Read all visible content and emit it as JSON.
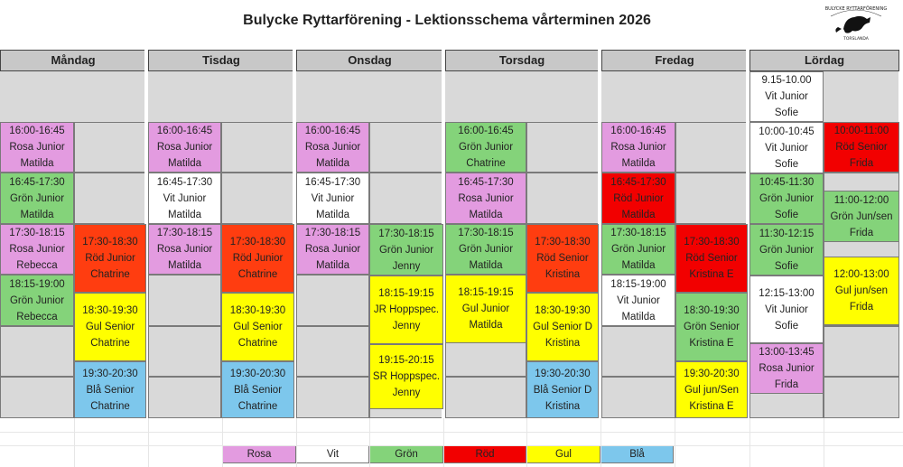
{
  "title": "Bulycke Ryttarförening - Lektionsschema vårterminen 2026",
  "logo_text": [
    "BULYCKE RYTTARFÖRENING",
    "TORSLANDA"
  ],
  "days": [
    "Måndag",
    "Tisdag",
    "Onsdag",
    "Torsdag",
    "Fredag",
    "Lördag"
  ],
  "colors": {
    "rosa": "#e39be0",
    "vit": "#ffffff",
    "gron": "#84d37a",
    "rod": "#f20000",
    "rod_orange": "#ff3d10",
    "gul": "#ffff00",
    "bla": "#7dc7ec",
    "empty": "#d9d9d9"
  },
  "lessons": [
    {
      "day": "Måndag",
      "time": "16:00-16:45",
      "group": "Rosa Junior",
      "teacher": "Matilda",
      "color": "rosa"
    },
    {
      "day": "Måndag",
      "time": "16:45-17:30",
      "group": "Grön Junior",
      "teacher": "Matilda",
      "color": "gron"
    },
    {
      "day": "Måndag",
      "time": "17:30-18:15",
      "group": "Rosa Junior",
      "teacher": "Rebecca",
      "color": "rosa"
    },
    {
      "day": "Måndag",
      "time": "18:15-19:00",
      "group": "Grön Junior",
      "teacher": "Rebecca",
      "color": "gron"
    },
    {
      "day": "Måndag",
      "time": "17:30-18:30",
      "group": "Röd Junior",
      "teacher": "Chatrine",
      "color": "rod_orange"
    },
    {
      "day": "Måndag",
      "time": "18:30-19:30",
      "group": "Gul Senior",
      "teacher": "Chatrine",
      "color": "gul"
    },
    {
      "day": "Måndag",
      "time": "19:30-20:30",
      "group": "Blå Senior",
      "teacher": "Chatrine",
      "color": "bla"
    },
    {
      "day": "Tisdag",
      "time": "16:00-16:45",
      "group": "Rosa Junior",
      "teacher": "Matilda",
      "color": "rosa"
    },
    {
      "day": "Tisdag",
      "time": "16:45-17:30",
      "group": "Vit Junior",
      "teacher": "Matilda",
      "color": "vit"
    },
    {
      "day": "Tisdag",
      "time": "17:30-18:15",
      "group": "Rosa Junior",
      "teacher": "Matilda",
      "color": "rosa"
    },
    {
      "day": "Tisdag",
      "time": "17:30-18:30",
      "group": "Röd Junior",
      "teacher": "Chatrine",
      "color": "rod_orange"
    },
    {
      "day": "Tisdag",
      "time": "18:30-19:30",
      "group": "Gul Senior",
      "teacher": "Chatrine",
      "color": "gul"
    },
    {
      "day": "Tisdag",
      "time": "19:30-20:30",
      "group": "Blå Senior",
      "teacher": "Chatrine",
      "color": "bla"
    },
    {
      "day": "Onsdag",
      "time": "16:00-16:45",
      "group": "Rosa Junior",
      "teacher": "Matilda",
      "color": "rosa"
    },
    {
      "day": "Onsdag",
      "time": "16:45-17:30",
      "group": "Vit Junior",
      "teacher": "Matilda",
      "color": "vit"
    },
    {
      "day": "Onsdag",
      "time": "17:30-18:15",
      "group": "Rosa Junior",
      "teacher": "Matilda",
      "color": "rosa"
    },
    {
      "day": "Onsdag",
      "time": "17:30-18:15",
      "group": "Grön Junior",
      "teacher": "Jenny",
      "color": "gron"
    },
    {
      "day": "Onsdag",
      "time": "18:15-19:15",
      "group": "JR Hoppspec.",
      "teacher": "Jenny",
      "color": "gul"
    },
    {
      "day": "Onsdag",
      "time": "19:15-20:15",
      "group": "SR Hoppspec.",
      "teacher": "Jenny",
      "color": "gul"
    },
    {
      "day": "Torsdag",
      "time": "16:00-16:45",
      "group": "Grön Junior",
      "teacher": "Chatrine",
      "color": "gron"
    },
    {
      "day": "Torsdag",
      "time": "16:45-17:30",
      "group": "Rosa Junior",
      "teacher": "Matilda",
      "color": "rosa"
    },
    {
      "day": "Torsdag",
      "time": "17:30-18:15",
      "group": "Grön Junior",
      "teacher": "Matilda",
      "color": "gron"
    },
    {
      "day": "Torsdag",
      "time": "18:15-19:15",
      "group": "Gul Junior",
      "teacher": "Matilda",
      "color": "gul"
    },
    {
      "day": "Torsdag",
      "time": "17:30-18:30",
      "group": "Röd Senior",
      "teacher": "Kristina",
      "color": "rod_orange"
    },
    {
      "day": "Torsdag",
      "time": "18:30-19:30",
      "group": "Gul Senior D",
      "teacher": "Kristina",
      "color": "gul"
    },
    {
      "day": "Torsdag",
      "time": "19:30-20:30",
      "group": "Blå Senior D",
      "teacher": "Kristina",
      "color": "bla"
    },
    {
      "day": "Fredag",
      "time": "16:00-16:45",
      "group": "Rosa Junior",
      "teacher": "Matilda",
      "color": "rosa"
    },
    {
      "day": "Fredag",
      "time": "16:45-17:30",
      "group": "Röd Junior",
      "teacher": "Matilda",
      "color": "rod"
    },
    {
      "day": "Fredag",
      "time": "17:30-18:15",
      "group": "Grön Junior",
      "teacher": "Matilda",
      "color": "gron"
    },
    {
      "day": "Fredag",
      "time": "18:15-19:00",
      "group": "Vit Junior",
      "teacher": "Matilda",
      "color": "vit"
    },
    {
      "day": "Fredag",
      "time": "17:30-18:30",
      "group": "Röd Senior",
      "teacher": "Kristina E",
      "color": "rod"
    },
    {
      "day": "Fredag",
      "time": "18:30-19:30",
      "group": "Grön Senior",
      "teacher": "Kristina E",
      "color": "gron"
    },
    {
      "day": "Fredag",
      "time": "19:30-20:30",
      "group": "Gul jun/Sen",
      "teacher": "Kristina E",
      "color": "gul"
    },
    {
      "day": "Lördag",
      "time": "9.15-10.00",
      "group": "Vit Junior",
      "teacher": "Sofie",
      "color": "vit"
    },
    {
      "day": "Lördag",
      "time": "10:00-10:45",
      "group": "Vit Junior",
      "teacher": "Sofie",
      "color": "vit"
    },
    {
      "day": "Lördag",
      "time": "10:45-11:30",
      "group": "Grön Junior",
      "teacher": "Sofie",
      "color": "gron"
    },
    {
      "day": "Lördag",
      "time": "11:30-12:15",
      "group": "Grön Junior",
      "teacher": "Sofie",
      "color": "gron"
    },
    {
      "day": "Lördag",
      "time": "12:15-13:00",
      "group": "Vit Junior",
      "teacher": "Sofie",
      "color": "vit"
    },
    {
      "day": "Lördag",
      "time": "13:00-13:45",
      "group": "Rosa Junior",
      "teacher": "Frida",
      "color": "rosa"
    },
    {
      "day": "Lördag",
      "time": "10:00-11:00",
      "group": "Röd Senior",
      "teacher": "Frida",
      "color": "rod"
    },
    {
      "day": "Lördag",
      "time": "11:00-12:00",
      "group": "Grön Jun/sen",
      "teacher": "Frida",
      "color": "gron"
    },
    {
      "day": "Lördag",
      "time": "12:00-13:00",
      "group": "Gul jun/sen",
      "teacher": "Frida",
      "color": "gul"
    }
  ],
  "legend": [
    {
      "label": "Rosa",
      "color": "rosa"
    },
    {
      "label": "Vit",
      "color": "vit"
    },
    {
      "label": "Grön",
      "color": "gron"
    },
    {
      "label": "Röd",
      "color": "rod"
    },
    {
      "label": "Gul",
      "color": "gul"
    },
    {
      "label": "Blå",
      "color": "bla"
    }
  ]
}
